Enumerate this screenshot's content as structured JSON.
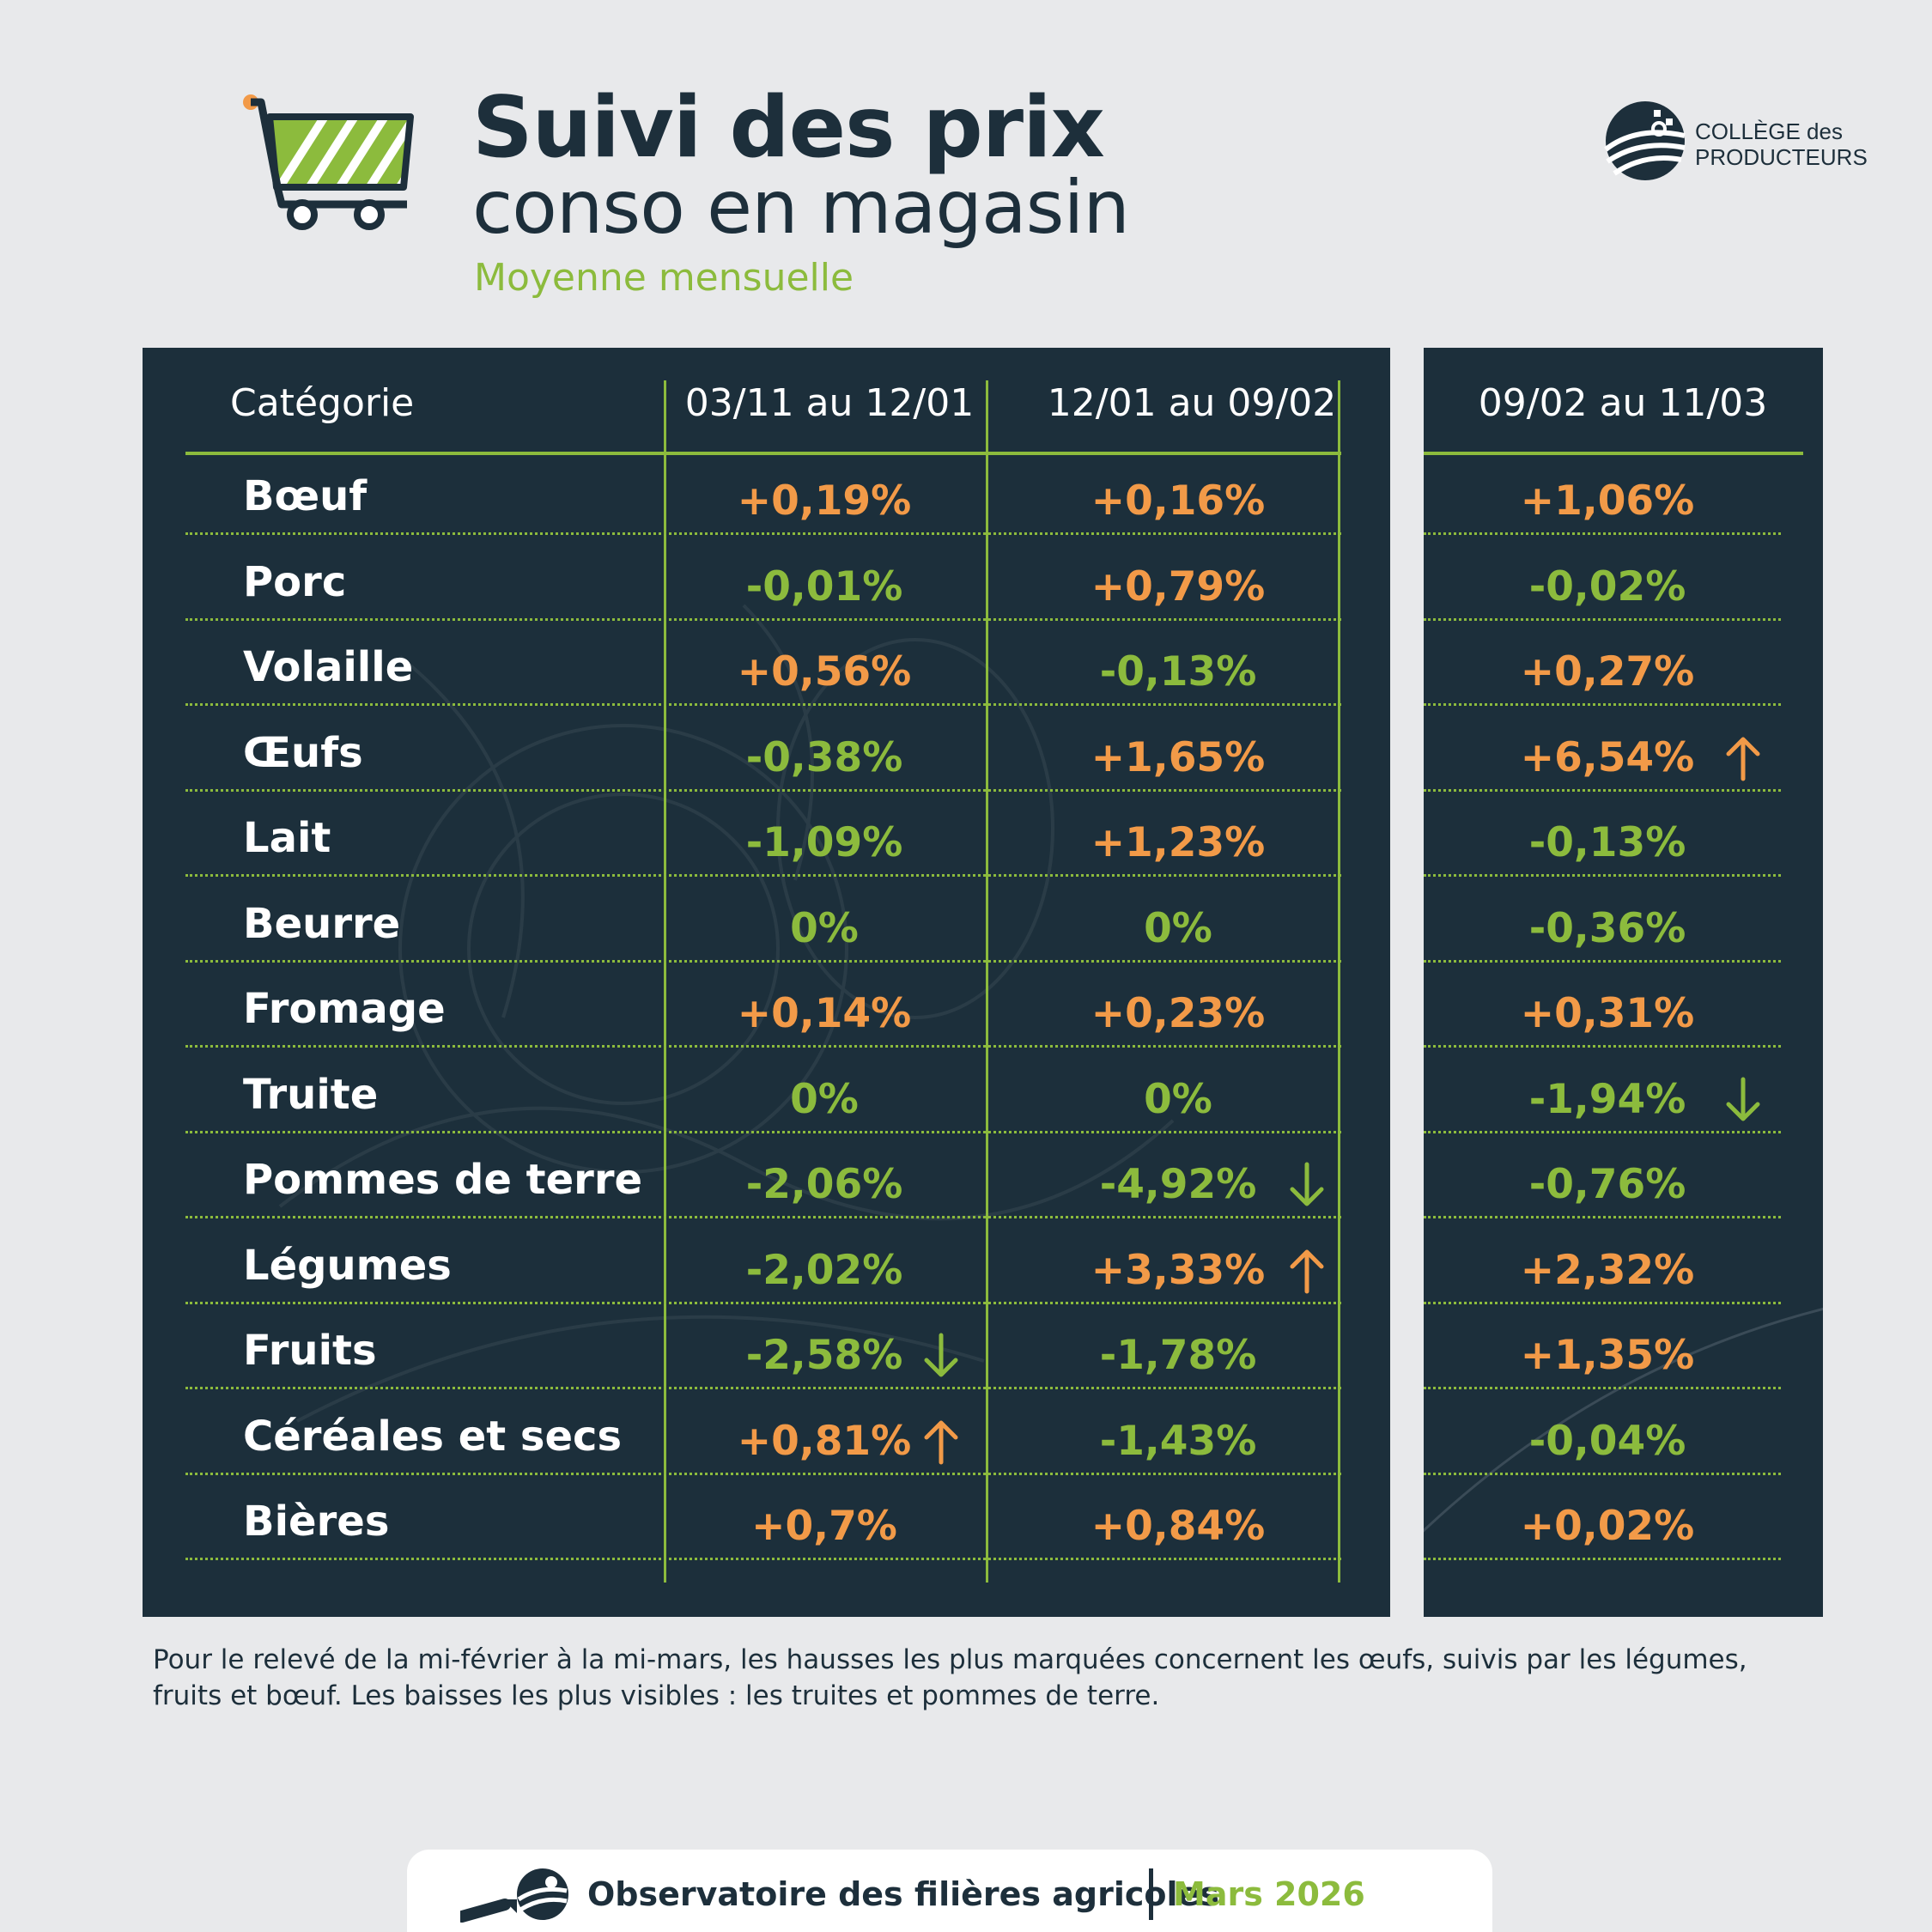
{
  "header": {
    "title_line1": "Suivi des prix",
    "title_line2": "conso en magasin",
    "subtitle": "Moyenne mensuelle",
    "logo_line1": "COLLÈGE des",
    "logo_line2": "PRODUCTEURS"
  },
  "table": {
    "columns": [
      "Catégorie",
      "03/11 au 12/01",
      "12/01 au 09/02",
      "09/02 au 11/03"
    ],
    "rows": [
      {
        "category": "Bœuf",
        "values": [
          "+0,19%",
          "+0,16%",
          "+1,06%"
        ]
      },
      {
        "category": "Porc",
        "values": [
          "-0,01%",
          "+0,79%",
          "-0,02%"
        ]
      },
      {
        "category": "Volaille",
        "values": [
          "+0,56%",
          "-0,13%",
          "+0,27%"
        ]
      },
      {
        "category": "Œufs",
        "values": [
          "-0,38%",
          "+1,65%",
          "+6,54%"
        ]
      },
      {
        "category": "Lait",
        "values": [
          "-1,09%",
          "+1,23%",
          "-0,13%"
        ]
      },
      {
        "category": "Beurre",
        "values": [
          "0%",
          "0%",
          "-0,36%"
        ]
      },
      {
        "category": "Fromage",
        "values": [
          "+0,14%",
          "+0,23%",
          "+0,31%"
        ]
      },
      {
        "category": "Truite",
        "values": [
          "0%",
          "0%",
          "-1,94%"
        ]
      },
      {
        "category": "Pommes de terre",
        "values": [
          "-2,06%",
          "-4,92%",
          "-0,76%"
        ]
      },
      {
        "category": "Légumes",
        "values": [
          "-2,02%",
          "+3,33%",
          "+2,32%"
        ]
      },
      {
        "category": "Fruits",
        "values": [
          "-2,58%",
          "-1,78%",
          "+1,35%"
        ]
      },
      {
        "category": "Céréales et secs",
        "values": [
          "+0,81%",
          "-1,43%",
          "-0,04%"
        ]
      },
      {
        "category": "Bières",
        "values": [
          "+0,7%",
          "+0,84%",
          "+0,02%"
        ]
      }
    ],
    "highlights": [
      {
        "row": 3,
        "col": 2,
        "direction": "up",
        "icon": "arrow-up-icon"
      },
      {
        "row": 7,
        "col": 2,
        "direction": "down",
        "icon": "arrow-down-icon"
      },
      {
        "row": 8,
        "col": 1,
        "direction": "down",
        "icon": "arrow-down-icon"
      },
      {
        "row": 9,
        "col": 1,
        "direction": "up",
        "icon": "arrow-up-icon"
      },
      {
        "row": 10,
        "col": 0,
        "direction": "down",
        "icon": "arrow-down-icon"
      },
      {
        "row": 11,
        "col": 0,
        "direction": "up",
        "icon": "arrow-up-icon"
      }
    ],
    "colors": {
      "increase": "#f29a48",
      "decrease": "#8cbb3d",
      "panel": "#1c2f3b"
    }
  },
  "note": "Pour le relevé de la mi-février à la mi-mars, les hausses les plus marquées concernent les œufs, suivis par les légumes, fruits et bœuf. Les baisses les plus visibles : les truites et pommes de terre.",
  "footer": {
    "label": "Observatoire des filières agricoles",
    "date": "Mars 2026"
  }
}
